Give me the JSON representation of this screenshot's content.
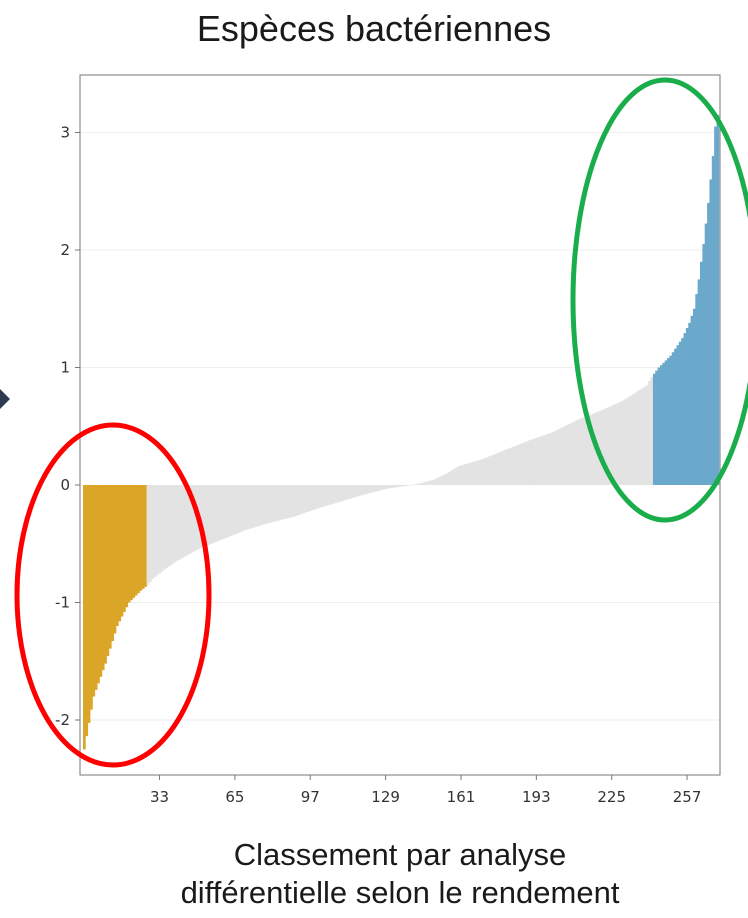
{
  "chart_data": {
    "type": "bar",
    "title": "Espèces bactériennes",
    "xlabel_lines": [
      "Classement par analyse",
      "différentielle selon le rendement"
    ],
    "xlabel": "Classement par analyse différentielle selon le rendement",
    "ylabel": "",
    "n_bars": 270,
    "xlim": [
      1,
      270
    ],
    "ylim": [
      -2.3,
      3.35
    ],
    "xticks": [
      33,
      65,
      97,
      129,
      161,
      193,
      225,
      257
    ],
    "yticks": [
      -2,
      -1,
      0,
      1,
      2,
      3
    ],
    "grid": true,
    "x": [
      1,
      5,
      10,
      15,
      20,
      25,
      28,
      30,
      35,
      40,
      50,
      60,
      70,
      80,
      90,
      100,
      110,
      120,
      130,
      140,
      145,
      150,
      155,
      160,
      170,
      180,
      190,
      200,
      210,
      220,
      230,
      240,
      242,
      245,
      250,
      255,
      258,
      260,
      262,
      264,
      266,
      268,
      269,
      270
    ],
    "values": [
      -2.25,
      -1.8,
      -1.52,
      -1.2,
      -1.0,
      -0.9,
      -0.85,
      -0.8,
      -0.72,
      -0.65,
      -0.54,
      -0.46,
      -0.38,
      -0.32,
      -0.27,
      -0.2,
      -0.14,
      -0.08,
      -0.03,
      0.0,
      0.02,
      0.05,
      0.1,
      0.16,
      0.22,
      0.3,
      0.38,
      0.45,
      0.55,
      0.63,
      0.72,
      0.85,
      0.92,
      1.0,
      1.1,
      1.25,
      1.38,
      1.5,
      1.75,
      2.05,
      2.4,
      2.8,
      3.05,
      3.15
    ],
    "series": [
      {
        "name": "",
        "from": 1,
        "to": 27,
        "color": "#dba628"
      },
      {
        "name": "",
        "from": 28,
        "to": 242,
        "color": "#e3e3e3"
      },
      {
        "name": "",
        "from": 243,
        "to": 270,
        "color": "#6aa8cc"
      }
    ],
    "annotations": [
      {
        "shape": "ellipse",
        "color": "#ff0000"
      },
      {
        "shape": "ellipse",
        "color": "#1aad4b"
      },
      {
        "shape": "arrowhead",
        "color": "#2d3a4f"
      }
    ]
  }
}
